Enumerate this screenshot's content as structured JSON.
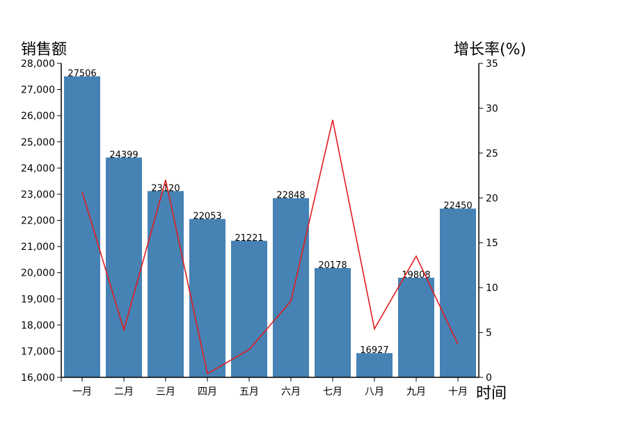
{
  "chart_data": {
    "type": "bar",
    "categories": [
      "一月",
      "二月",
      "三月",
      "四月",
      "五月",
      "六月",
      "七月",
      "八月",
      "九月",
      "十月"
    ],
    "series": [
      {
        "type": "bar",
        "axis": "left",
        "values": [
          27506,
          24399,
          23120,
          22053,
          21221,
          22848,
          20178,
          16927,
          19808,
          22450
        ],
        "color": "#4682b4"
      },
      {
        "type": "line",
        "axis": "right",
        "values": [
          20.7,
          5.3,
          22.0,
          0.4,
          3.1,
          8.5,
          28.7,
          5.4,
          13.5,
          3.7
        ],
        "color": "#e31a1c"
      }
    ],
    "y_left": {
      "label": "销售额",
      "min": 16000,
      "max": 28000,
      "ticks": [
        16000,
        17000,
        18000,
        19000,
        20000,
        21000,
        22000,
        23000,
        24000,
        25000,
        26000,
        27000,
        28000
      ]
    },
    "y_right": {
      "label": "增长率(%)",
      "min": 0,
      "max": 35,
      "ticks": [
        0,
        5,
        10,
        15,
        20,
        25,
        30,
        35
      ]
    },
    "x_axis": {
      "label": "时间"
    }
  }
}
